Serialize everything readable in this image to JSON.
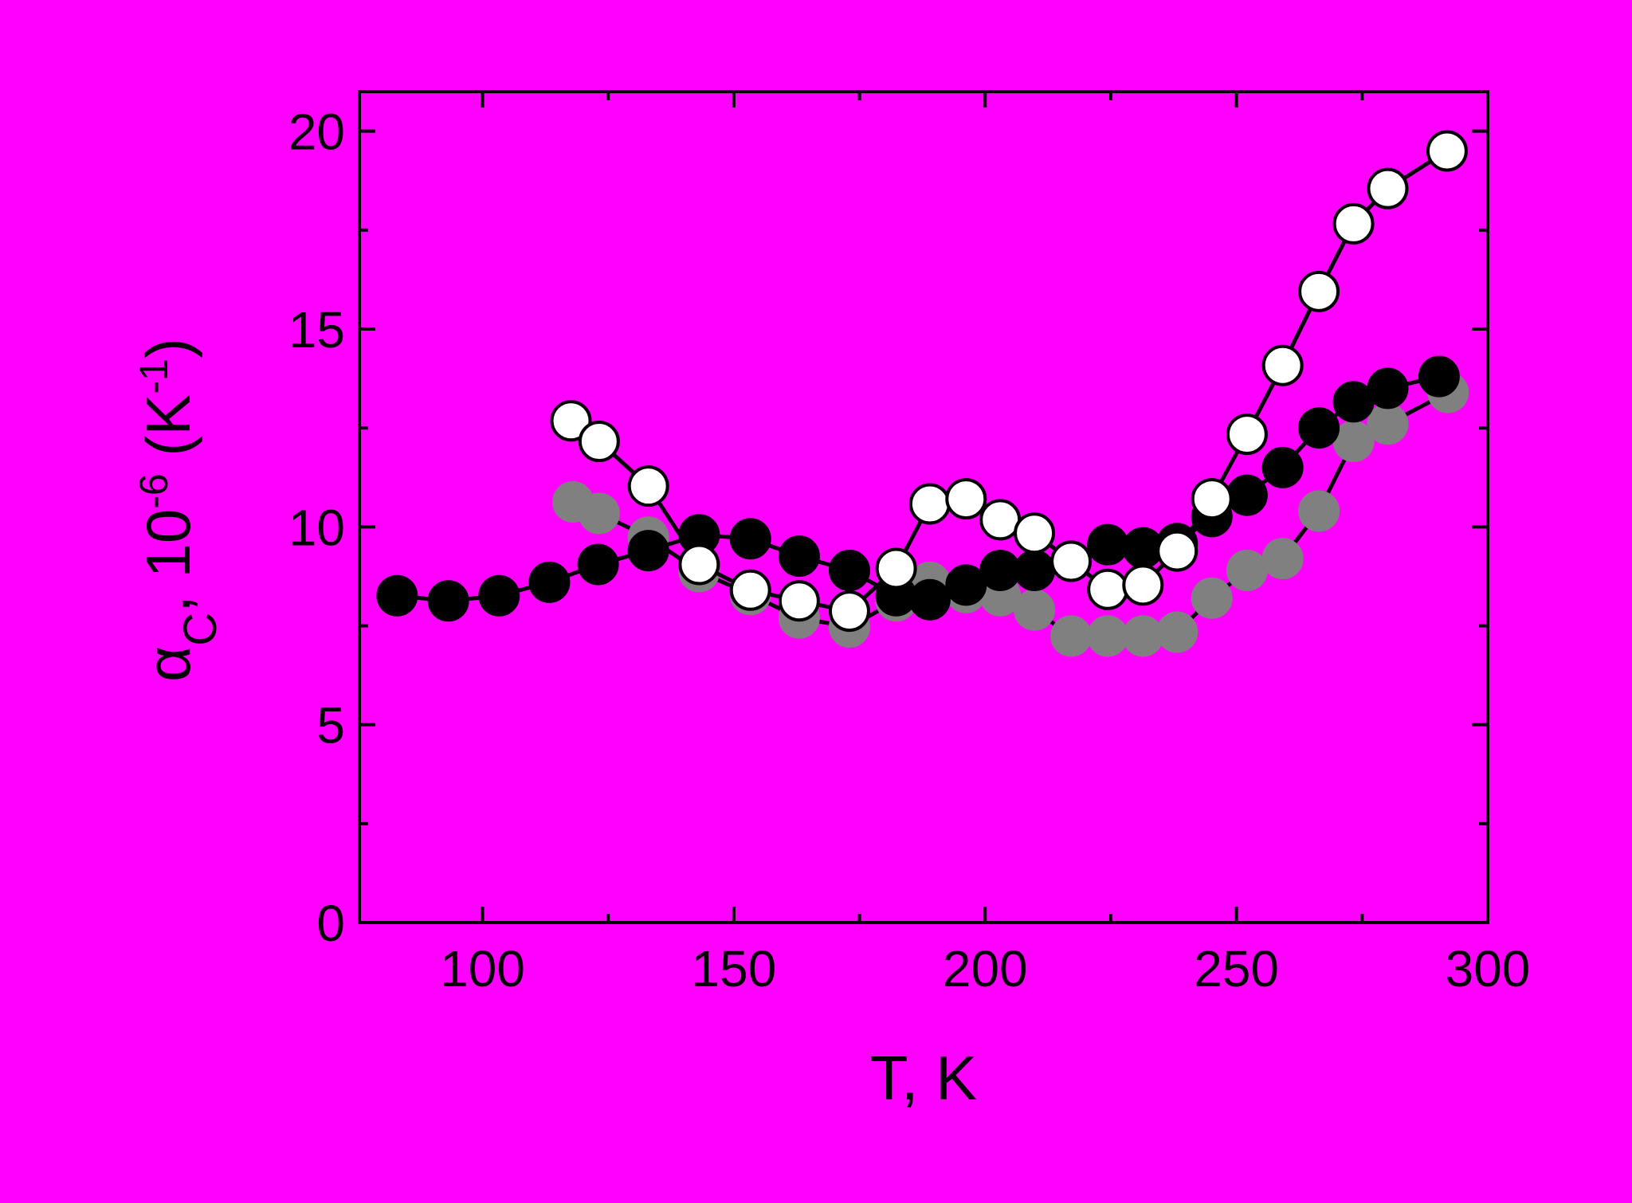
{
  "chart_data": {
    "type": "line",
    "x_label": "T, K",
    "y_label": {
      "symbol": "α",
      "subscript": "C",
      "text": ", 10",
      "superscript": "-6",
      "unit_open": " (K",
      "unit_superscript": "-1",
      "unit_close": ")"
    },
    "xlim": [
      75.5,
      300
    ],
    "xticks": [
      100,
      150,
      200,
      250,
      300
    ],
    "xminor_ticks": [
      125,
      175,
      225,
      275
    ],
    "ylim": [
      0,
      21
    ],
    "yticks": [
      0,
      5,
      10,
      15,
      20
    ],
    "yminor_ticks": [
      2.5,
      7.5,
      12.5,
      17.5
    ],
    "line_color": "#000000",
    "background": "#ff00ff",
    "series": [
      {
        "color": "#808080",
        "edge": "#808080",
        "x": [
          118,
          123.2,
          133,
          143.1,
          153.3,
          163,
          173,
          182.3,
          189,
          196.2,
          203,
          209.8,
          217.1,
          224.4,
          231.4,
          238.2,
          245.1,
          252.1,
          259.2,
          266.4,
          273.3,
          280.1,
          292.1
        ],
        "values": [
          10.63,
          10.34,
          9.74,
          8.87,
          8.29,
          7.7,
          7.47,
          8.13,
          8.6,
          8.34,
          8.26,
          7.9,
          7.24,
          7.24,
          7.24,
          7.34,
          8.2,
          8.9,
          9.2,
          10.4,
          12.16,
          12.6,
          13.4
        ]
      },
      {
        "color": "#000000",
        "edge": "#000000",
        "x": [
          83,
          93.2,
          103.3,
          113.3,
          123,
          133,
          143.1,
          153.3,
          163,
          173,
          182.3,
          189,
          196.2,
          203,
          209.8,
          217.1,
          224.4,
          231.4,
          238.2,
          245.1,
          252.1,
          259.2,
          266.4,
          273.3,
          280.1,
          290.3
        ],
        "values": [
          8.26,
          8.13,
          8.26,
          8.6,
          9.05,
          9.4,
          9.8,
          9.7,
          9.26,
          8.9,
          8.26,
          8.16,
          8.53,
          8.9,
          8.9,
          9.13,
          9.55,
          9.47,
          9.58,
          10.26,
          10.8,
          11.5,
          12.5,
          13.16,
          13.5,
          13.8
        ]
      },
      {
        "color": "#ffffff",
        "edge": "#000000",
        "x": [
          117.6,
          123.2,
          133,
          143.1,
          153.3,
          163,
          173,
          182.3,
          189,
          196.2,
          203,
          209.8,
          217.1,
          224.4,
          231.4,
          238.2,
          245.1,
          252.1,
          259.2,
          266.4,
          273.3,
          280.1,
          291.9
        ],
        "values": [
          12.68,
          12.16,
          11.03,
          9.05,
          8.4,
          8.13,
          7.87,
          8.95,
          10.58,
          10.71,
          10.18,
          9.84,
          9.13,
          8.42,
          8.53,
          9.39,
          10.71,
          12.34,
          14.08,
          15.95,
          17.66,
          18.55,
          19.5
        ]
      }
    ]
  }
}
